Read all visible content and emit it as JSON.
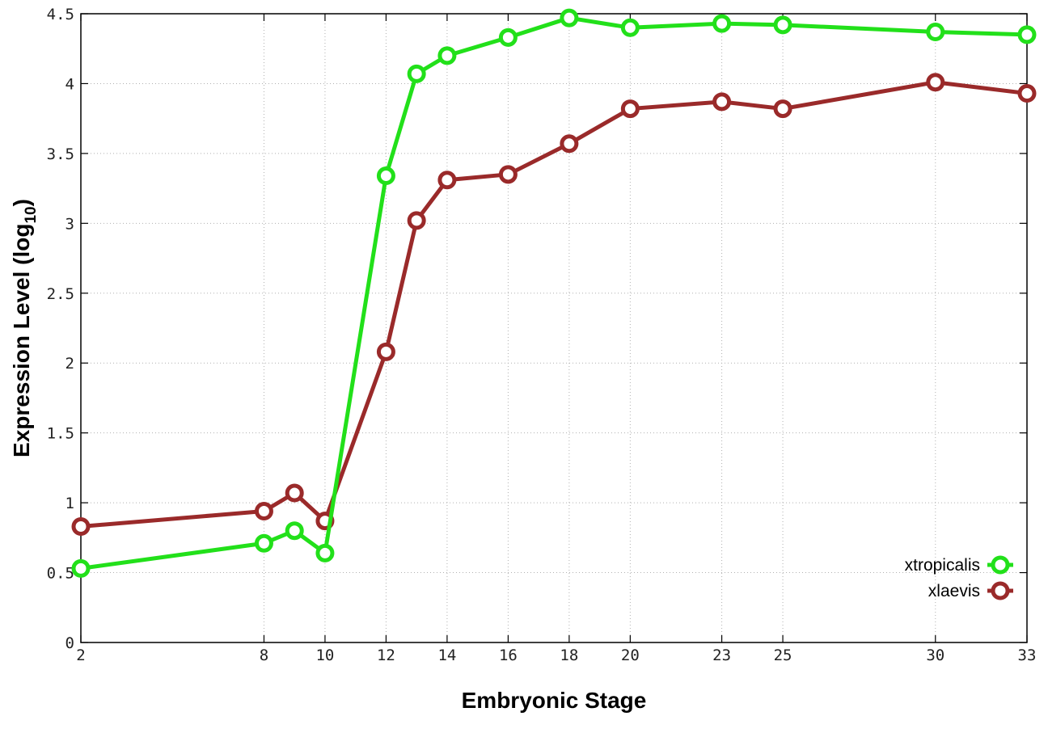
{
  "chart_data": {
    "type": "line",
    "title": "",
    "xlabel": "Embryonic Stage",
    "ylabel": "Expression Level (log",
    "ylabel_subscript": "10",
    "ylabel_suffix": ")",
    "xlim": [
      2,
      33
    ],
    "ylim": [
      0,
      4.5
    ],
    "x_ticks": [
      2,
      8,
      10,
      12,
      14,
      16,
      18,
      20,
      23,
      25,
      30,
      33
    ],
    "x_tick_labels": [
      "2",
      "8",
      "10",
      "12",
      "14",
      "16",
      "18",
      "20",
      "23",
      "25",
      "30",
      "33"
    ],
    "y_ticks": [
      0,
      0.5,
      1,
      1.5,
      2,
      2.5,
      3,
      3.5,
      4,
      4.5
    ],
    "y_tick_labels": [
      "0",
      "0.5",
      "1",
      "1.5",
      "2",
      "2.5",
      "3",
      "3.5",
      "4",
      "4.5"
    ],
    "grid": true,
    "legend_position": "bottom-right",
    "x": [
      2,
      8,
      9,
      10,
      12,
      13,
      14,
      16,
      18,
      20,
      23,
      25,
      30,
      33
    ],
    "series": [
      {
        "name": "xtropicalis",
        "color": "#22e01a",
        "values": [
          0.53,
          0.71,
          0.8,
          0.64,
          3.34,
          4.07,
          4.2,
          4.33,
          4.47,
          4.4,
          4.43,
          4.42,
          4.37,
          4.35
        ]
      },
      {
        "name": "xlaevis",
        "color": "#9a2a2a",
        "values": [
          0.83,
          0.94,
          1.07,
          0.87,
          2.08,
          3.02,
          3.31,
          3.35,
          3.57,
          3.82,
          3.87,
          3.82,
          4.01,
          3.93
        ]
      }
    ]
  }
}
